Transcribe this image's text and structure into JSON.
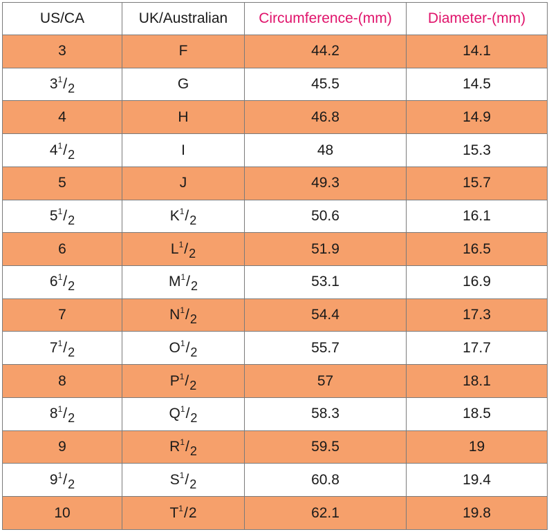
{
  "headers": [
    "US/CA",
    "UK/Australian",
    "Circumference-(mm)",
    "Diameter-(mm)"
  ],
  "header_colors": {
    "default": "#1a1a1a",
    "highlight": "#e0136b"
  },
  "row_colors": {
    "orange": "#f6a06b",
    "white": "#ffffff"
  },
  "rows": [
    {
      "us": {
        "base": "3"
      },
      "uk": {
        "base": "F"
      },
      "circ": "44.2",
      "diam": "14.1"
    },
    {
      "us": {
        "base": "3",
        "num": "1",
        "sep": "/",
        "den": "2"
      },
      "uk": {
        "base": "G"
      },
      "circ": "45.5",
      "diam": "14.5"
    },
    {
      "us": {
        "base": "4"
      },
      "uk": {
        "base": "H"
      },
      "circ": "46.8",
      "diam": "14.9"
    },
    {
      "us": {
        "base": "4",
        "num": "1",
        "sep": "/",
        "den": "2"
      },
      "uk": {
        "base": "I"
      },
      "circ": "48",
      "diam": "15.3"
    },
    {
      "us": {
        "base": "5"
      },
      "uk": {
        "base": "J"
      },
      "circ": "49.3",
      "diam": "15.7"
    },
    {
      "us": {
        "base": "5",
        "num": "1",
        "sep": "/",
        "den": "2"
      },
      "uk": {
        "base": "K",
        "num": "1",
        "sep": "/",
        "den": "2"
      },
      "circ": "50.6",
      "diam": "16.1"
    },
    {
      "us": {
        "base": "6"
      },
      "uk": {
        "base": "L",
        "num": "1",
        "sep": "/",
        "den": "2"
      },
      "circ": "51.9",
      "diam": "16.5"
    },
    {
      "us": {
        "base": "6",
        "num": "1",
        "sep": "/",
        "den": "2"
      },
      "uk": {
        "base": "M",
        "num": "1",
        "sep": "/",
        "den": "2"
      },
      "circ": "53.1",
      "diam": "16.9"
    },
    {
      "us": {
        "base": "7"
      },
      "uk": {
        "base": "N",
        "num": "1",
        "sep": "/",
        "den": "2"
      },
      "circ": "54.4",
      "diam": "17.3"
    },
    {
      "us": {
        "base": "7",
        "num": "1",
        "sep": "/",
        "den": "2"
      },
      "uk": {
        "base": "O",
        "num": "1",
        "sep": "/",
        "den": "2"
      },
      "circ": "55.7",
      "diam": "17.7"
    },
    {
      "us": {
        "base": "8"
      },
      "uk": {
        "base": "P",
        "num": "1",
        "sep": "/",
        "den": "2"
      },
      "circ": "57",
      "diam": "18.1"
    },
    {
      "us": {
        "base": "8",
        "num": "1",
        "sep": "/",
        "den": "2"
      },
      "uk": {
        "base": "Q",
        "num": "1",
        "sep": "/",
        "den": "2"
      },
      "circ": "58.3",
      "diam": "18.5"
    },
    {
      "us": {
        "base": "9"
      },
      "uk": {
        "base": "R",
        "num": "1",
        "sep": "/",
        "den": "2"
      },
      "circ": "59.5",
      "diam": "19"
    },
    {
      "us": {
        "base": "9",
        "num": "1",
        "sep": "/",
        "den": "2"
      },
      "uk": {
        "base": "S",
        "num": "1",
        "sep": "/",
        "den": "2"
      },
      "circ": "60.8",
      "diam": "19.4"
    },
    {
      "us": {
        "base": "10"
      },
      "uk": {
        "base": "T",
        "num": "1",
        "sep": "/",
        "den": "2",
        "inline": true
      },
      "circ": "62.1",
      "diam": "19.8"
    }
  ]
}
